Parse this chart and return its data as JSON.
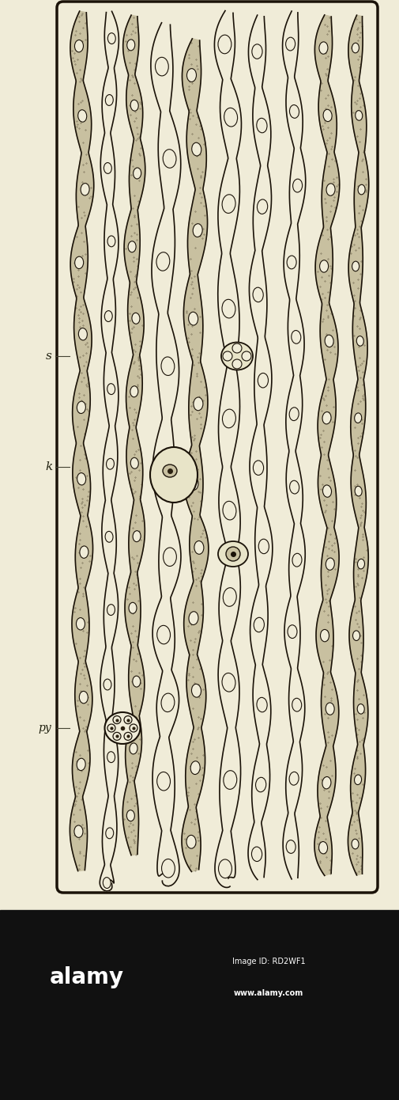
{
  "bg_color": "#F0ECD8",
  "border_color": "#1a1208",
  "label_s": "s",
  "label_k": "k",
  "label_py": "py",
  "fig_width": 5.05,
  "fig_height": 13.9,
  "alamy_text": "alamy",
  "alamy_id": "Image ID: RD2WF1",
  "alamy_url": "www.alamy.com",
  "line_color": "#1a1208",
  "stipple_color": "#2a2010",
  "fill_cream": "#F0ECD8",
  "fill_mid": "#C8C0A0",
  "fill_dark": "#484030"
}
